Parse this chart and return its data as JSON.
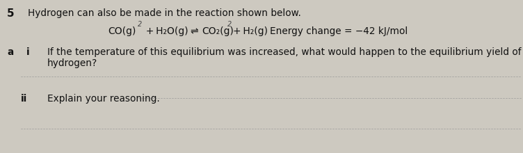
{
  "bg_color": "#cdc9c0",
  "text_color": "#111111",
  "question_number": "5",
  "intro_text": "Hydrogen can also be made in the reaction shown below.",
  "eq_co": "CO(g)",
  "eq_sup1": "2",
  "eq_plus1": "+ H",
  "eq_h2o_sub": "2",
  "eq_h2o_rest": "O(g)",
  "eq_arrow": "⇌",
  "eq_co2": "CO",
  "eq_co2_sub": "2",
  "eq_co2_rest": "(g)",
  "eq_sup2": "2",
  "eq_plus2": "+ H",
  "eq_h2_sub": "2",
  "eq_h2_rest": "(g)",
  "eq_energy": "Energy change = −42 kJ/mol",
  "part_a": "a",
  "part_i": "i",
  "question_line1": "If the temperature of this equilibrium was increased, what would happen to the equilibrium yield of",
  "question_line2": "hydrogen?",
  "part_ii": "ii",
  "explain_text": "Explain your reasoning.",
  "dot_color": "#999999",
  "fs_main": 9.8,
  "fs_eq": 10.0,
  "fs_super": 7.0,
  "fs_num": 11.0,
  "fs_label": 9.8
}
